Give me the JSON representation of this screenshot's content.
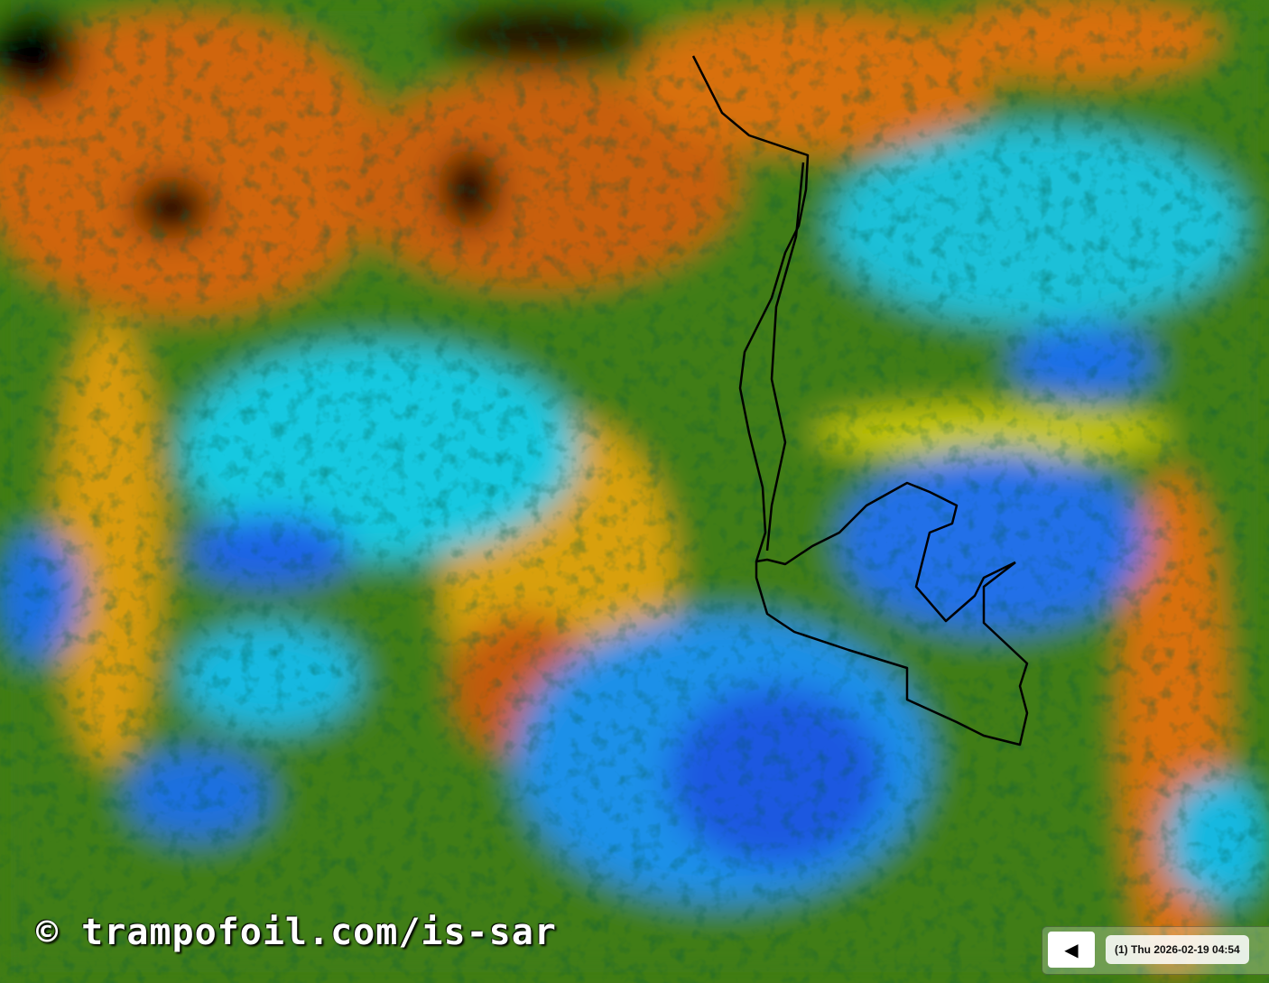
{
  "map": {
    "watermark": "© trampofoil.com/is-sar",
    "colors": {
      "base": "#3f7d12",
      "orange": "#d0650a",
      "yellow": "#e8e000",
      "cyan": "#19d0e6",
      "blue": "#1e64e6",
      "black": "#000000",
      "teal": "#2a8a78",
      "track": "#000000"
    }
  },
  "controls": {
    "prev_icon": "◀",
    "time_label": "(1) Thu 2026-02-19 04:54"
  }
}
